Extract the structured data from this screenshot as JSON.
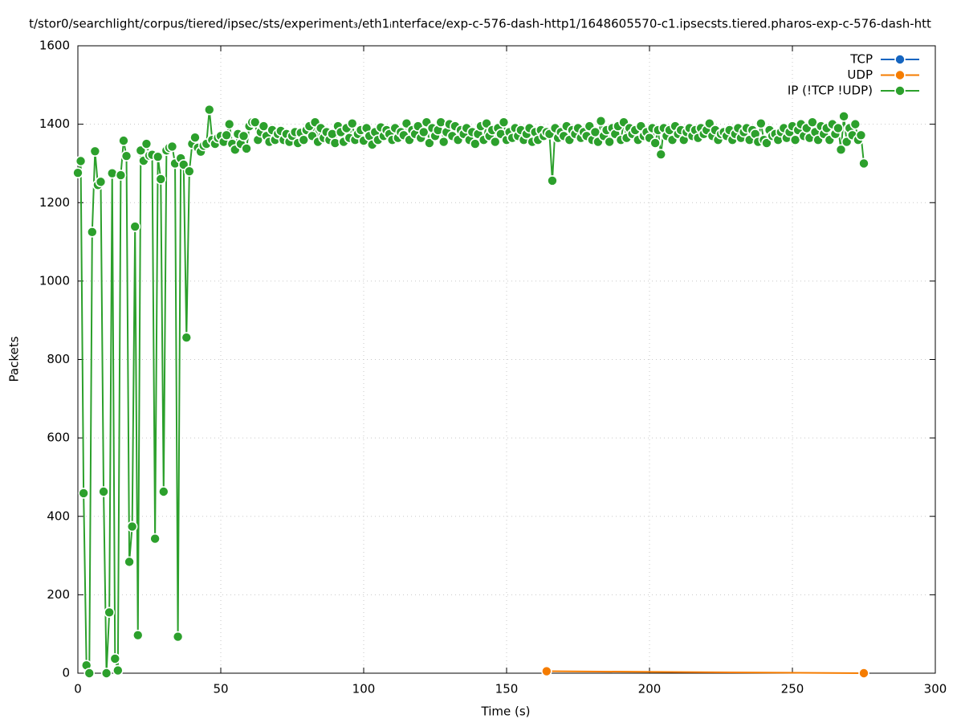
{
  "chart_data": {
    "type": "line",
    "title": "t/stor0/searchlight/corpus/tiered/ipsec/sts/experiment₃/eth1ᵢnterface/exp-c-576-dash-http1/1648605570-c1.ipsecsts.tiered.pharos-exp-c-576-dash-htt",
    "x_label": "Time (s)",
    "y_label": "Packets",
    "xlim": [
      0,
      300
    ],
    "xticks": [
      0,
      50,
      100,
      150,
      200,
      250,
      300
    ],
    "ylim": [
      0,
      1600
    ],
    "yticks": [
      0,
      200,
      400,
      600,
      800,
      1000,
      1200,
      1400,
      1600
    ],
    "grid": true,
    "legend": "top-right",
    "series": [
      {
        "name": "TCP",
        "color": "#1565c0",
        "x": [],
        "values": []
      },
      {
        "name": "UDP",
        "color": "#f57c00",
        "x": [
          164,
          275
        ],
        "values": [
          5,
          0
        ]
      },
      {
        "name": "IP (!TCP  !UDP)",
        "color": "#2ca02c",
        "x": [
          0,
          1,
          2,
          3,
          4,
          5,
          6,
          7,
          8,
          9,
          10,
          11,
          12,
          13,
          14,
          15,
          16,
          17,
          18,
          19,
          20,
          21,
          22,
          23,
          24,
          25,
          26,
          27,
          28,
          29,
          30,
          31,
          32,
          33,
          34,
          35,
          36,
          37,
          38,
          39,
          40,
          41,
          42,
          43,
          44,
          45,
          46,
          47,
          48,
          49,
          50,
          51,
          52,
          53,
          54,
          55,
          56,
          57,
          58,
          59,
          60,
          61,
          62,
          63,
          64,
          65,
          66,
          67,
          68,
          69,
          70,
          71,
          72,
          73,
          74,
          75,
          76,
          77,
          78,
          79,
          80,
          81,
          82,
          83,
          84,
          85,
          86,
          87,
          88,
          89,
          90,
          91,
          92,
          93,
          94,
          95,
          96,
          97,
          98,
          99,
          100,
          101,
          102,
          103,
          104,
          105,
          106,
          107,
          108,
          109,
          110,
          111,
          112,
          113,
          114,
          115,
          116,
          117,
          118,
          119,
          120,
          121,
          122,
          123,
          124,
          125,
          126,
          127,
          128,
          129,
          130,
          131,
          132,
          133,
          134,
          135,
          136,
          137,
          138,
          139,
          140,
          141,
          142,
          143,
          144,
          145,
          146,
          147,
          148,
          149,
          150,
          151,
          152,
          153,
          154,
          155,
          156,
          157,
          158,
          159,
          160,
          161,
          162,
          163,
          164,
          165,
          166,
          167,
          168,
          169,
          170,
          171,
          172,
          173,
          174,
          175,
          176,
          177,
          178,
          179,
          180,
          181,
          182,
          183,
          184,
          185,
          186,
          187,
          188,
          189,
          190,
          191,
          192,
          193,
          194,
          195,
          196,
          197,
          198,
          199,
          200,
          201,
          202,
          203,
          204,
          205,
          206,
          207,
          208,
          209,
          210,
          211,
          212,
          213,
          214,
          215,
          216,
          217,
          218,
          219,
          220,
          221,
          222,
          223,
          224,
          225,
          226,
          227,
          228,
          229,
          230,
          231,
          232,
          233,
          234,
          235,
          236,
          237,
          238,
          239,
          240,
          241,
          242,
          243,
          244,
          245,
          246,
          247,
          248,
          249,
          250,
          251,
          252,
          253,
          254,
          255,
          256,
          257,
          258,
          259,
          260,
          261,
          262,
          263,
          264,
          265,
          266,
          267,
          268,
          269,
          270,
          271,
          272,
          273,
          274,
          275
        ],
        "values": [
          1276,
          1306,
          459,
          20,
          0,
          1125,
          1331,
          1245,
          1253,
          463,
          0,
          155,
          1275,
          37,
          7,
          1270,
          1358,
          1319,
          284,
          374,
          1139,
          97,
          1333,
          1307,
          1350,
          1320,
          1322,
          343,
          1317,
          1260,
          463,
          1333,
          1340,
          1343,
          1300,
          93,
          1313,
          1297,
          856,
          1280,
          1350,
          1366,
          1340,
          1330,
          1345,
          1350,
          1437,
          1360,
          1350,
          1365,
          1370,
          1355,
          1372,
          1400,
          1350,
          1335,
          1375,
          1350,
          1370,
          1338,
          1395,
          1405,
          1405,
          1360,
          1380,
          1395,
          1370,
          1355,
          1385,
          1360,
          1375,
          1383,
          1360,
          1375,
          1355,
          1370,
          1380,
          1352,
          1378,
          1360,
          1385,
          1395,
          1370,
          1405,
          1355,
          1390,
          1365,
          1380,
          1360,
          1375,
          1352,
          1395,
          1380,
          1355,
          1390,
          1365,
          1402,
          1360,
          1375,
          1385,
          1358,
          1390,
          1370,
          1348,
          1380,
          1360,
          1392,
          1370,
          1385,
          1375,
          1360,
          1390,
          1365,
          1380,
          1372,
          1402,
          1360,
          1385,
          1375,
          1395,
          1365,
          1380,
          1405,
          1352,
          1390,
          1370,
          1385,
          1405,
          1355,
          1380,
          1400,
          1370,
          1395,
          1360,
          1385,
          1375,
          1390,
          1360,
          1380,
          1350,
          1375,
          1395,
          1360,
          1402,
          1370,
          1385,
          1355,
          1390,
          1375,
          1405,
          1360,
          1380,
          1365,
          1390,
          1370,
          1385,
          1360,
          1375,
          1390,
          1355,
          1380,
          1360,
          1385,
          1370,
          1380,
          1375,
          1256,
          1390,
          1365,
          1380,
          1370,
          1395,
          1360,
          1385,
          1375,
          1390,
          1365,
          1380,
          1370,
          1395,
          1360,
          1380,
          1355,
          1408,
          1370,
          1385,
          1355,
          1390,
          1375,
          1395,
          1360,
          1405,
          1365,
          1390,
          1375,
          1385,
          1360,
          1395,
          1370,
          1380,
          1365,
          1390,
          1352,
          1385,
          1323,
          1390,
          1370,
          1385,
          1360,
          1395,
          1375,
          1385,
          1360,
          1380,
          1390,
          1370,
          1385,
          1365,
          1390,
          1375,
          1385,
          1402,
          1370,
          1385,
          1360,
          1375,
          1380,
          1370,
          1385,
          1360,
          1375,
          1390,
          1365,
          1380,
          1390,
          1360,
          1385,
          1375,
          1355,
          1402,
          1360,
          1352,
          1385,
          1370,
          1375,
          1360,
          1380,
          1390,
          1365,
          1380,
          1395,
          1360,
          1385,
          1400,
          1370,
          1390,
          1365,
          1405,
          1380,
          1360,
          1395,
          1375,
          1390,
          1360,
          1400,
          1375,
          1390,
          1335,
          1420,
          1355,
          1390,
          1372,
          1400,
          1360,
          1372,
          1300
        ]
      }
    ]
  }
}
